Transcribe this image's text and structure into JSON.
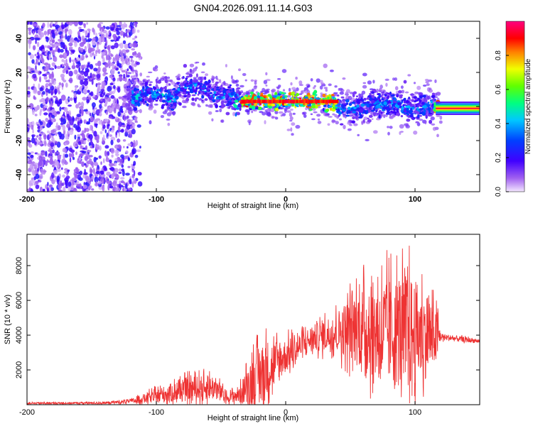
{
  "title": "GN04.2026.091.11.14.G03",
  "chart_data": [
    {
      "type": "heatmap",
      "id": "spectrogram",
      "xlabel": "Height of straight line (km)",
      "ylabel": "Frequency (Hz)",
      "xlim": [
        -200,
        150
      ],
      "ylim": [
        -50,
        50
      ],
      "x_ticks": [
        -200,
        -100,
        0,
        100
      ],
      "y_ticks": [
        -40,
        -20,
        0,
        20,
        40
      ],
      "colorbar": {
        "label": "Normalized spectral amplitude",
        "range": [
          0,
          1
        ],
        "ticks": [
          0.0,
          0.2,
          0.4,
          0.6,
          0.8
        ],
        "tick_labels": [
          "0.0",
          "0.2",
          "0.4",
          "0.6",
          "0.8"
        ]
      },
      "segments": [
        {
          "x_range": [
            -200,
            -120
          ],
          "description": "broadband noise",
          "freq_center": 0,
          "amplitude": 0.15
        },
        {
          "x_range": [
            -120,
            -85
          ],
          "freq_center": 6,
          "amplitude": 0.45
        },
        {
          "x_range": [
            -85,
            -40
          ],
          "freq_center": 8,
          "amplitude": 0.4
        },
        {
          "x_range": [
            -40,
            -35
          ],
          "freq_center": 2,
          "amplitude": 0.5
        },
        {
          "x_range": [
            -35,
            40
          ],
          "freq_center": 3,
          "amplitude": 0.9
        },
        {
          "x_range": [
            40,
            115
          ],
          "freq_center": 0,
          "amplitude": 0.4
        },
        {
          "x_range": [
            115,
            150
          ],
          "freq_center": -1,
          "amplitude": 1.0
        }
      ]
    },
    {
      "type": "line",
      "id": "snr",
      "xlabel": "Height of straight line (km)",
      "ylabel": "SNR (10 * v/v)",
      "xlim": [
        -200,
        150
      ],
      "ylim": [
        0,
        9800
      ],
      "x_ticks": [
        -200,
        -100,
        0,
        100
      ],
      "y_ticks": [
        2000,
        4000,
        6000,
        8000
      ],
      "color": "#ee3333",
      "envelope": [
        {
          "x": -200,
          "base": 80,
          "amp": 60
        },
        {
          "x": -140,
          "base": 100,
          "amp": 80
        },
        {
          "x": -120,
          "base": 200,
          "amp": 150
        },
        {
          "x": -100,
          "base": 500,
          "amp": 500
        },
        {
          "x": -75,
          "base": 900,
          "amp": 900
        },
        {
          "x": -55,
          "base": 1000,
          "amp": 900
        },
        {
          "x": -45,
          "base": 400,
          "amp": 300
        },
        {
          "x": -35,
          "base": 600,
          "amp": 700
        },
        {
          "x": -25,
          "base": 1500,
          "amp": 2000
        },
        {
          "x": -15,
          "base": 2000,
          "amp": 2200
        },
        {
          "x": 0,
          "base": 2800,
          "amp": 1200
        },
        {
          "x": 20,
          "base": 3800,
          "amp": 900
        },
        {
          "x": 40,
          "base": 4200,
          "amp": 1500
        },
        {
          "x": 55,
          "base": 4500,
          "amp": 2800
        },
        {
          "x": 75,
          "base": 4200,
          "amp": 3800
        },
        {
          "x": 95,
          "base": 4200,
          "amp": 4200
        },
        {
          "x": 110,
          "base": 4000,
          "amp": 3000
        },
        {
          "x": 118,
          "base": 3900,
          "amp": 1500
        },
        {
          "x": 120,
          "base": 3900,
          "amp": 250
        },
        {
          "x": 150,
          "base": 3650,
          "amp": 150
        }
      ]
    }
  ]
}
